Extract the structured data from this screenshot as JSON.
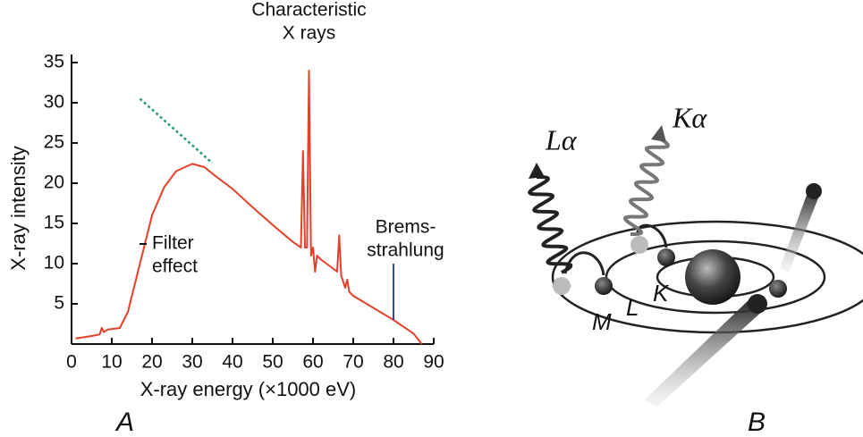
{
  "chart_data": {
    "type": "line",
    "xlabel": "X-ray energy (×1000 eV)",
    "ylabel": "X-ray intensity",
    "xlim": [
      0,
      90
    ],
    "ylim": [
      0,
      36
    ],
    "xticks": [
      0,
      10,
      20,
      30,
      40,
      50,
      60,
      70,
      80,
      90
    ],
    "yticks": [
      5,
      10,
      15,
      20,
      25,
      30,
      35
    ],
    "series": [
      {
        "color": "#e5412a",
        "x": [
          1,
          5,
          7,
          7.5,
          8,
          9,
          12,
          14,
          16,
          18,
          20,
          23,
          26,
          30,
          33,
          36,
          40,
          45,
          50,
          55,
          57,
          57.5,
          58,
          58.5,
          59,
          59.5,
          60,
          60.5,
          61,
          62,
          66,
          66.5,
          67,
          68,
          68.5,
          69,
          70,
          75,
          80,
          85,
          87
        ],
        "values": [
          0.7,
          1,
          1.2,
          2,
          1.5,
          1.8,
          2,
          4,
          8,
          12,
          16,
          19.5,
          21.5,
          22.4,
          22,
          20.8,
          19.3,
          17,
          14.8,
          12.7,
          12,
          24,
          12,
          12,
          34,
          11,
          12,
          9,
          11,
          10.5,
          9,
          13.5,
          8.5,
          7,
          8,
          6.5,
          6,
          4.5,
          3,
          1.3,
          0
        ]
      }
    ],
    "tangent": {
      "color": "#2a9a6a",
      "x": [
        17,
        35
      ],
      "values": [
        30.5,
        22.5
      ]
    },
    "marker_line": {
      "color": "#3a4aa0",
      "x": 80,
      "values": [
        3,
        10
      ]
    },
    "annotations": [
      {
        "lines": [
          "Characteristic",
          "X rays"
        ],
        "x": 59,
        "y": 40
      },
      {
        "lines": [
          "Filter",
          "effect"
        ],
        "x": 20,
        "y": 11
      },
      {
        "lines": [
          "Brems-",
          "strahlung"
        ],
        "x": 83,
        "y": 13
      }
    ],
    "panel_label": "A"
  },
  "diagram": {
    "labels": {
      "l_alpha": "Lα",
      "k_alpha": "Kα",
      "m": "M",
      "l": "L",
      "k": "K"
    },
    "panel_label": "B"
  }
}
